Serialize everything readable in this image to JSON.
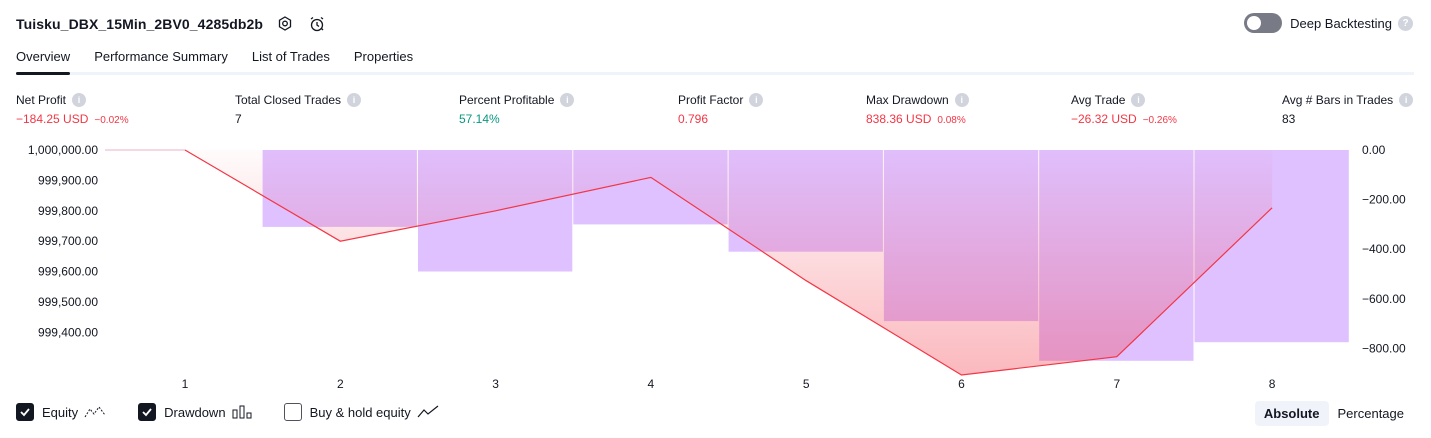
{
  "header": {
    "strategy_name": "Tuisku_DBX_15Min_2BV0_4285db2b",
    "settings_icon": "settings-icon",
    "alert_icon": "alarm-clock-icon",
    "deep_backtesting_label": "Deep Backtesting",
    "deep_backtesting_on": false
  },
  "tabs": [
    {
      "label": "Overview",
      "active": true
    },
    {
      "label": "Performance Summary",
      "active": false
    },
    {
      "label": "List of Trades",
      "active": false
    },
    {
      "label": "Properties",
      "active": false
    }
  ],
  "metrics": [
    {
      "label": "Net Profit",
      "value": "−184.25 USD",
      "sub": "−0.02%",
      "tone": "neg"
    },
    {
      "label": "Total Closed Trades",
      "value": "7",
      "sub": "",
      "tone": "neutral"
    },
    {
      "label": "Percent Profitable",
      "value": "57.14%",
      "sub": "",
      "tone": "pos"
    },
    {
      "label": "Profit Factor",
      "value": "0.796",
      "sub": "",
      "tone": "neg"
    },
    {
      "label": "Max Drawdown",
      "value": "838.36 USD",
      "sub": "0.08%",
      "tone": "neg"
    },
    {
      "label": "Avg Trade",
      "value": "−26.32 USD",
      "sub": "−0.26%",
      "tone": "neg"
    },
    {
      "label": "Avg # Bars in Trades",
      "value": "83",
      "sub": "",
      "tone": "neutral"
    }
  ],
  "chart_data": {
    "type": "line",
    "x": [
      1,
      2,
      3,
      4,
      5,
      6,
      7,
      8
    ],
    "x_ticks": [
      "1",
      "2",
      "3",
      "4",
      "5",
      "6",
      "7",
      "8"
    ],
    "left_axis": {
      "ticks": [
        "1,000,000.00",
        "999,900.00",
        "999,800.00",
        "999,700.00",
        "999,600.00",
        "999,500.00",
        "999,400.00"
      ],
      "range": [
        999300,
        1000000
      ]
    },
    "right_axis": {
      "ticks": [
        "0.00",
        "−200.00",
        "−400.00",
        "−600.00",
        "−800.00"
      ],
      "range": [
        -850,
        0
      ]
    },
    "series": [
      {
        "name": "Equity",
        "color": "#f23645",
        "values": [
          1000000,
          999700,
          999800,
          999910,
          999570,
          999260,
          999320,
          999810
        ]
      },
      {
        "name": "Drawdown",
        "color": "#d1a6ff",
        "bar_values": [
          0,
          -310,
          -490,
          -300,
          -410,
          -690,
          -850,
          -775
        ]
      }
    ],
    "grid": false
  },
  "legend": [
    {
      "label": "Equity",
      "checked": true,
      "icon": "equity-line-icon"
    },
    {
      "label": "Drawdown",
      "checked": true,
      "icon": "drawdown-bars-icon"
    },
    {
      "label": "Buy & hold equity",
      "checked": false,
      "icon": "buy-hold-line-icon"
    }
  ],
  "modes": [
    {
      "label": "Absolute",
      "active": true
    },
    {
      "label": "Percentage",
      "active": false
    }
  ]
}
